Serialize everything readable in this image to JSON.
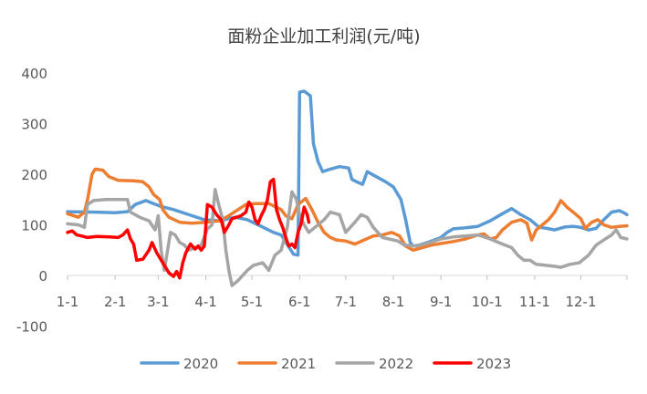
{
  "chart_data": {
    "type": "line",
    "title": "面粉企业加工利润(元/吨)",
    "xlabel": "",
    "ylabel": "",
    "ylim": [
      -100,
      400
    ],
    "y_ticks": [
      400,
      300,
      200,
      100,
      0,
      -100
    ],
    "x_range_day": [
      1,
      365
    ],
    "x_ticks": [
      {
        "label": "1-1",
        "day": 1
      },
      {
        "label": "2-1",
        "day": 32
      },
      {
        "label": "3-1",
        "day": 60
      },
      {
        "label": "4-1",
        "day": 91
      },
      {
        "label": "5-1",
        "day": 121
      },
      {
        "label": "6-1",
        "day": 152
      },
      {
        "label": "7-1",
        "day": 182
      },
      {
        "label": "8-1",
        "day": 213
      },
      {
        "label": "9-1",
        "day": 244
      },
      {
        "label": "10-1",
        "day": 274
      },
      {
        "label": "11-1",
        "day": 305
      },
      {
        "label": "12-1",
        "day": 335
      }
    ],
    "grid": false,
    "legend_position": "bottom",
    "series": [
      {
        "name": "2020",
        "color": "#5B9BD5",
        "points": [
          [
            1,
            126
          ],
          [
            20,
            125
          ],
          [
            32,
            124
          ],
          [
            40,
            126
          ],
          [
            45,
            140
          ],
          [
            52,
            148
          ],
          [
            56,
            143
          ],
          [
            62,
            136
          ],
          [
            70,
            130
          ],
          [
            80,
            120
          ],
          [
            90,
            110
          ],
          [
            100,
            108
          ],
          [
            110,
            115
          ],
          [
            118,
            110
          ],
          [
            125,
            100
          ],
          [
            135,
            85
          ],
          [
            140,
            80
          ],
          [
            148,
            42
          ],
          [
            151,
            40
          ],
          [
            152,
            362
          ],
          [
            155,
            364
          ],
          [
            159,
            355
          ],
          [
            161,
            260
          ],
          [
            164,
            225
          ],
          [
            167,
            205
          ],
          [
            172,
            210
          ],
          [
            178,
            215
          ],
          [
            184,
            212
          ],
          [
            186,
            190
          ],
          [
            189,
            185
          ],
          [
            193,
            180
          ],
          [
            196,
            205
          ],
          [
            202,
            195
          ],
          [
            208,
            185
          ],
          [
            213,
            175
          ],
          [
            218,
            150
          ],
          [
            221,
            110
          ],
          [
            224,
            65
          ],
          [
            226,
            58
          ],
          [
            230,
            60
          ],
          [
            236,
            66
          ],
          [
            244,
            75
          ],
          [
            248,
            85
          ],
          [
            252,
            92
          ],
          [
            260,
            94
          ],
          [
            268,
            97
          ],
          [
            276,
            108
          ],
          [
            284,
            122
          ],
          [
            290,
            132
          ],
          [
            296,
            120
          ],
          [
            302,
            110
          ],
          [
            308,
            95
          ],
          [
            313,
            93
          ],
          [
            318,
            90
          ],
          [
            325,
            96
          ],
          [
            330,
            97
          ],
          [
            335,
            95
          ],
          [
            340,
            90
          ],
          [
            345,
            93
          ],
          [
            350,
            110
          ],
          [
            355,
            125
          ],
          [
            360,
            128
          ],
          [
            363,
            124
          ],
          [
            365,
            120
          ]
        ]
      },
      {
        "name": "2021",
        "color": "#ED7D31",
        "points": [
          [
            1,
            122
          ],
          [
            8,
            115
          ],
          [
            12,
            125
          ],
          [
            14,
            150
          ],
          [
            17,
            200
          ],
          [
            19,
            210
          ],
          [
            24,
            208
          ],
          [
            28,
            195
          ],
          [
            34,
            188
          ],
          [
            44,
            187
          ],
          [
            50,
            185
          ],
          [
            54,
            175
          ],
          [
            57,
            160
          ],
          [
            61,
            150
          ],
          [
            63,
            130
          ],
          [
            67,
            115
          ],
          [
            74,
            105
          ],
          [
            82,
            103
          ],
          [
            91,
            105
          ],
          [
            100,
            108
          ],
          [
            106,
            118
          ],
          [
            112,
            130
          ],
          [
            117,
            140
          ],
          [
            123,
            142
          ],
          [
            132,
            142
          ],
          [
            140,
            130
          ],
          [
            143,
            118
          ],
          [
            147,
            112
          ],
          [
            151,
            140
          ],
          [
            156,
            152
          ],
          [
            160,
            130
          ],
          [
            164,
            105
          ],
          [
            168,
            85
          ],
          [
            172,
            75
          ],
          [
            176,
            70
          ],
          [
            182,
            68
          ],
          [
            188,
            62
          ],
          [
            194,
            70
          ],
          [
            200,
            78
          ],
          [
            206,
            80
          ],
          [
            212,
            85
          ],
          [
            217,
            78
          ],
          [
            221,
            58
          ],
          [
            226,
            50
          ],
          [
            232,
            55
          ],
          [
            238,
            60
          ],
          [
            244,
            63
          ],
          [
            252,
            67
          ],
          [
            260,
            72
          ],
          [
            268,
            80
          ],
          [
            272,
            82
          ],
          [
            276,
            72
          ],
          [
            280,
            75
          ],
          [
            284,
            90
          ],
          [
            290,
            105
          ],
          [
            296,
            110
          ],
          [
            300,
            103
          ],
          [
            303,
            70
          ],
          [
            306,
            90
          ],
          [
            310,
            100
          ],
          [
            314,
            110
          ],
          [
            318,
            125
          ],
          [
            322,
            148
          ],
          [
            326,
            135
          ],
          [
            330,
            125
          ],
          [
            335,
            112
          ],
          [
            338,
            93
          ],
          [
            342,
            105
          ],
          [
            346,
            110
          ],
          [
            350,
            100
          ],
          [
            355,
            95
          ],
          [
            360,
            97
          ],
          [
            365,
            98
          ]
        ]
      },
      {
        "name": "2022",
        "color": "#A5A5A5",
        "points": [
          [
            1,
            102
          ],
          [
            8,
            100
          ],
          [
            12,
            95
          ],
          [
            14,
            140
          ],
          [
            18,
            148
          ],
          [
            26,
            150
          ],
          [
            34,
            150
          ],
          [
            40,
            150
          ],
          [
            42,
            125
          ],
          [
            48,
            115
          ],
          [
            54,
            108
          ],
          [
            58,
            90
          ],
          [
            60,
            118
          ],
          [
            62,
            48
          ],
          [
            64,
            10
          ],
          [
            68,
            85
          ],
          [
            71,
            80
          ],
          [
            74,
            65
          ],
          [
            77,
            60
          ],
          [
            80,
            50
          ],
          [
            84,
            55
          ],
          [
            88,
            60
          ],
          [
            92,
            92
          ],
          [
            95,
            100
          ],
          [
            97,
            170
          ],
          [
            99,
            145
          ],
          [
            102,
            110
          ],
          [
            104,
            50
          ],
          [
            106,
            10
          ],
          [
            108,
            -20
          ],
          [
            112,
            -10
          ],
          [
            118,
            10
          ],
          [
            122,
            20
          ],
          [
            128,
            25
          ],
          [
            132,
            10
          ],
          [
            136,
            40
          ],
          [
            140,
            50
          ],
          [
            144,
            95
          ],
          [
            147,
            165
          ],
          [
            150,
            150
          ],
          [
            152,
            120
          ],
          [
            155,
            100
          ],
          [
            158,
            85
          ],
          [
            162,
            95
          ],
          [
            168,
            110
          ],
          [
            172,
            125
          ],
          [
            178,
            120
          ],
          [
            182,
            85
          ],
          [
            188,
            105
          ],
          [
            192,
            120
          ],
          [
            196,
            115
          ],
          [
            200,
            95
          ],
          [
            206,
            75
          ],
          [
            210,
            72
          ],
          [
            216,
            68
          ],
          [
            220,
            60
          ],
          [
            228,
            58
          ],
          [
            236,
            64
          ],
          [
            244,
            72
          ],
          [
            252,
            76
          ],
          [
            260,
            78
          ],
          [
            268,
            80
          ],
          [
            276,
            72
          ],
          [
            284,
            62
          ],
          [
            290,
            55
          ],
          [
            294,
            40
          ],
          [
            298,
            30
          ],
          [
            302,
            30
          ],
          [
            306,
            22
          ],
          [
            312,
            20
          ],
          [
            318,
            18
          ],
          [
            322,
            16
          ],
          [
            328,
            22
          ],
          [
            334,
            25
          ],
          [
            340,
            40
          ],
          [
            345,
            60
          ],
          [
            350,
            70
          ],
          [
            355,
            80
          ],
          [
            358,
            90
          ],
          [
            361,
            75
          ],
          [
            365,
            72
          ]
        ]
      },
      {
        "name": "2023",
        "color": "#FF0000",
        "points": [
          [
            1,
            85
          ],
          [
            4,
            88
          ],
          [
            7,
            80
          ],
          [
            10,
            78
          ],
          [
            14,
            75
          ],
          [
            20,
            77
          ],
          [
            28,
            76
          ],
          [
            34,
            75
          ],
          [
            37,
            80
          ],
          [
            40,
            90
          ],
          [
            42,
            72
          ],
          [
            44,
            62
          ],
          [
            46,
            30
          ],
          [
            50,
            32
          ],
          [
            54,
            50
          ],
          [
            56,
            65
          ],
          [
            59,
            45
          ],
          [
            62,
            30
          ],
          [
            65,
            15
          ],
          [
            67,
            5
          ],
          [
            70,
            -2
          ],
          [
            72,
            8
          ],
          [
            74,
            -5
          ],
          [
            76,
            25
          ],
          [
            78,
            45
          ],
          [
            81,
            62
          ],
          [
            84,
            52
          ],
          [
            86,
            58
          ],
          [
            88,
            50
          ],
          [
            90,
            58
          ],
          [
            92,
            140
          ],
          [
            95,
            135
          ],
          [
            98,
            120
          ],
          [
            101,
            110
          ],
          [
            103,
            85
          ],
          [
            106,
            100
          ],
          [
            108,
            112
          ],
          [
            111,
            115
          ],
          [
            114,
            118
          ],
          [
            117,
            125
          ],
          [
            119,
            145
          ],
          [
            121,
            135
          ],
          [
            123,
            110
          ],
          [
            125,
            102
          ],
          [
            127,
            118
          ],
          [
            129,
            130
          ],
          [
            131,
            148
          ],
          [
            133,
            185
          ],
          [
            135,
            190
          ],
          [
            137,
            130
          ],
          [
            139,
            110
          ],
          [
            141,
            95
          ],
          [
            143,
            75
          ],
          [
            145,
            58
          ],
          [
            147,
            62
          ],
          [
            149,
            55
          ],
          [
            151,
            85
          ],
          [
            153,
            102
          ],
          [
            155,
            135
          ],
          [
            157,
            120
          ],
          [
            158,
            105
          ]
        ]
      }
    ]
  }
}
